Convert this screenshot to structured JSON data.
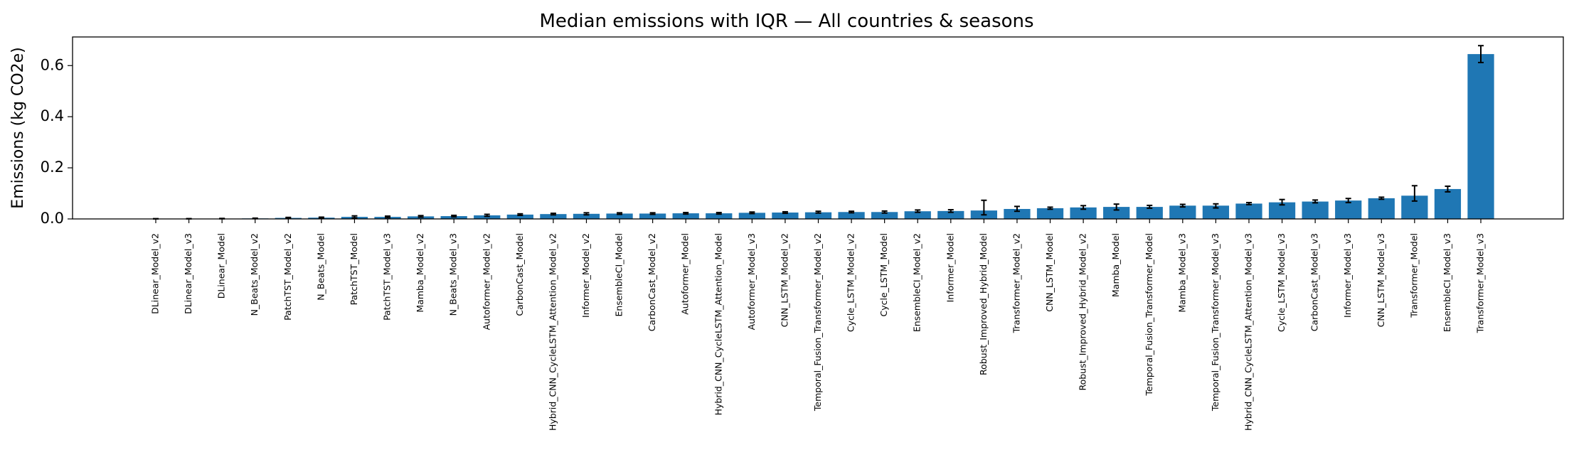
{
  "chart_data": {
    "type": "bar",
    "title": "Median emissions with IQR — All countries & seasons",
    "xlabel": "",
    "ylabel": "Emissions (kg CO2e)",
    "ylim": [
      0,
      0.712
    ],
    "yticks": [
      0.0,
      0.2,
      0.4,
      0.6
    ],
    "ytick_labels": [
      "0.0",
      "0.2",
      "0.4",
      "0.6"
    ],
    "grid": false,
    "legend": "none",
    "bar_color": "#1f77b4",
    "error_color": "#000000",
    "categories": [
      "DLinear_Model_v2",
      "DLinear_Model_v3",
      "DLinear_Model",
      "N_Beats_Model_v2",
      "PatchTST_Model_v2",
      "N_Beats_Model",
      "PatchTST_Model",
      "PatchTST_Model_v3",
      "Mamba_Model_v2",
      "N_Beats_Model_v3",
      "Autoformer_Model_v2",
      "CarbonCast_Model",
      "Hybrid_CNN_CycleLSTM_Attention_Model_v2",
      "Informer_Model_v2",
      "EnsembleCI_Model",
      "CarbonCast_Model_v2",
      "Autoformer_Model",
      "Hybrid_CNN_CycleLSTM_Attention_Model",
      "Autoformer_Model_v3",
      "CNN_LSTM_Model_v2",
      "Temporal_Fusion_Transformer_Model_v2",
      "Cycle_LSTM_Model_v2",
      "Cycle_LSTM_Model",
      "EnsembleCI_Model_v2",
      "Informer_Model",
      "Robust_Improved_Hybrid_Model",
      "Transformer_Model_v2",
      "CNN_LSTM_Model",
      "Robust_Improved_Hybrid_Model_v2",
      "Mamba_Model",
      "Temporal_Fusion_Transformer_Model",
      "Mamba_Model_v3",
      "Temporal_Fusion_Transformer_Model_v3",
      "Hybrid_CNN_CycleLSTM_Attention_Model_v3",
      "Cycle_LSTM_Model_v3",
      "CarbonCast_Model_v3",
      "Informer_Model_v3",
      "CNN_LSTM_Model_v3",
      "Transformer_Model",
      "EnsembleCI_Model_v3",
      "Transformer_Model_v3"
    ],
    "values": [
      0.0005,
      0.0007,
      0.001,
      0.002,
      0.004,
      0.005,
      0.008,
      0.008,
      0.01,
      0.011,
      0.014,
      0.017,
      0.019,
      0.02,
      0.021,
      0.021,
      0.022,
      0.022,
      0.024,
      0.025,
      0.026,
      0.027,
      0.027,
      0.03,
      0.031,
      0.033,
      0.039,
      0.042,
      0.045,
      0.047,
      0.047,
      0.052,
      0.052,
      0.06,
      0.065,
      0.068,
      0.072,
      0.081,
      0.091,
      0.117,
      0.645
    ],
    "iqr_low": [
      0.0002,
      0.0003,
      0.0005,
      0.001,
      0.002,
      0.003,
      0.004,
      0.005,
      0.007,
      0.008,
      0.01,
      0.014,
      0.016,
      0.016,
      0.018,
      0.018,
      0.019,
      0.019,
      0.021,
      0.022,
      0.023,
      0.024,
      0.023,
      0.026,
      0.026,
      0.016,
      0.03,
      0.038,
      0.038,
      0.035,
      0.042,
      0.047,
      0.043,
      0.056,
      0.055,
      0.063,
      0.064,
      0.077,
      0.07,
      0.106,
      0.612
    ],
    "iqr_high": [
      0.001,
      0.0012,
      0.002,
      0.003,
      0.006,
      0.007,
      0.012,
      0.011,
      0.013,
      0.014,
      0.018,
      0.02,
      0.022,
      0.024,
      0.024,
      0.024,
      0.025,
      0.025,
      0.027,
      0.028,
      0.03,
      0.03,
      0.031,
      0.035,
      0.036,
      0.073,
      0.049,
      0.046,
      0.052,
      0.058,
      0.053,
      0.057,
      0.059,
      0.064,
      0.076,
      0.074,
      0.08,
      0.085,
      0.13,
      0.128,
      0.678
    ]
  }
}
